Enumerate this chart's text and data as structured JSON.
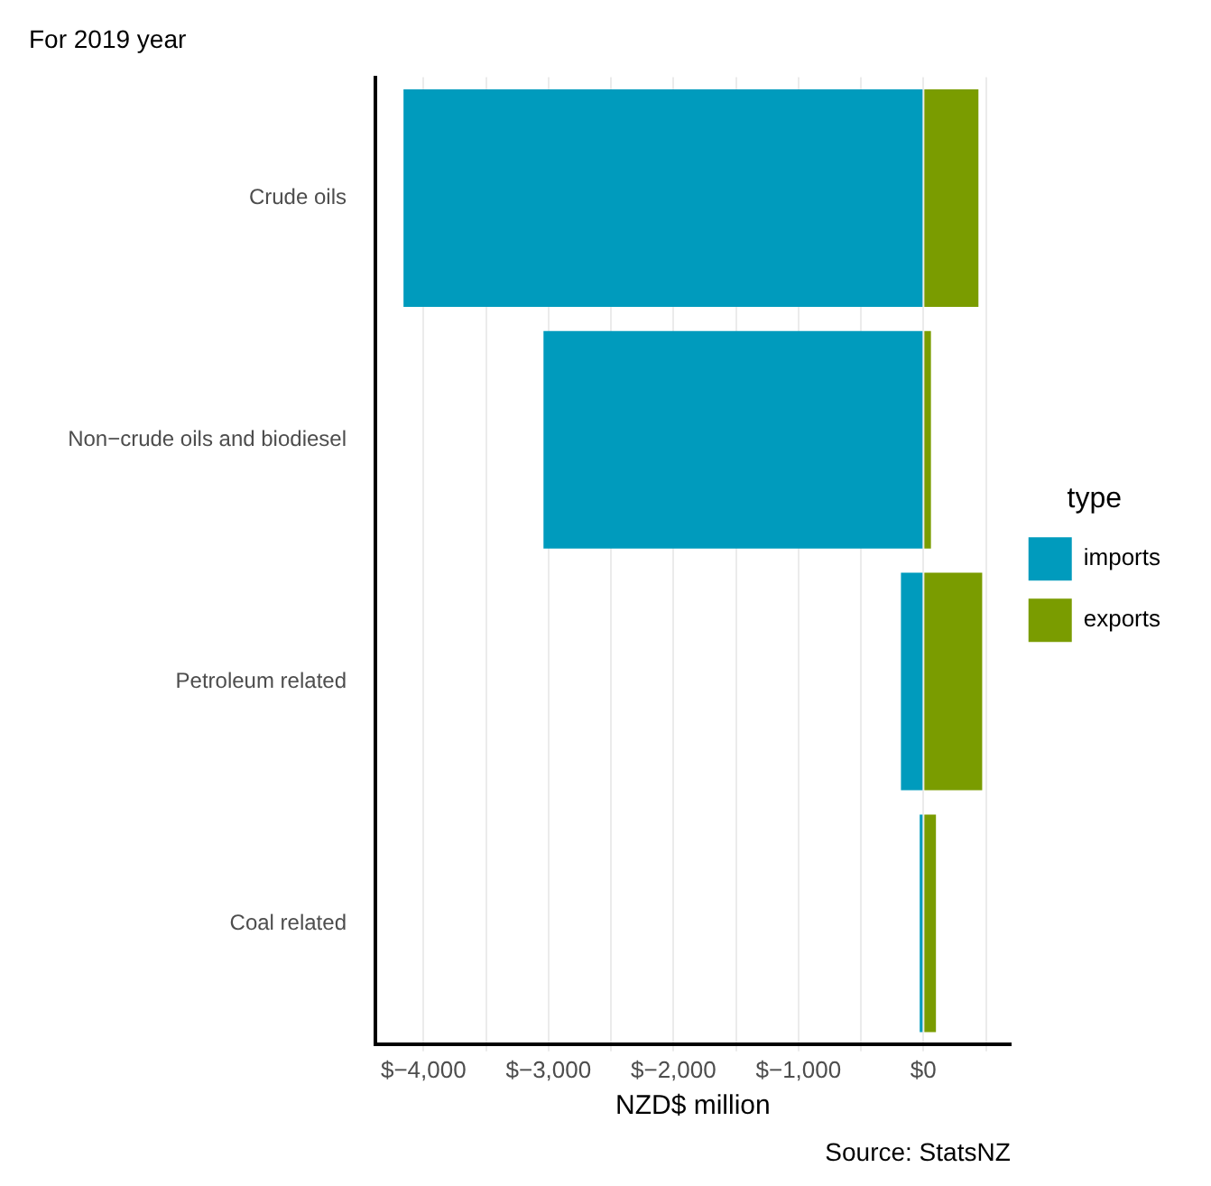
{
  "chart_data": {
    "type": "bar",
    "orientation": "horizontal",
    "stacked": true,
    "subtitle": "For 2019 year",
    "xlabel": "NZD$ million",
    "legend_title": "type",
    "legend": "right",
    "grid": "x",
    "categories": [
      "Crude oils",
      "Non−crude oils and biodiesel",
      "Petroleum related",
      "Coal related"
    ],
    "series": [
      {
        "name": "imports",
        "color": "#009bbd",
        "values": [
          -4160,
          -3040,
          -180,
          -30
        ]
      },
      {
        "name": "exports",
        "color": "#7a9c00",
        "values": [
          440,
          60,
          470,
          100
        ]
      }
    ],
    "xlim": [
      -4385,
      696
    ],
    "xticks": [
      {
        "value": -4000,
        "label": "$−4,000"
      },
      {
        "value": -3500,
        "label": null
      },
      {
        "value": -3000,
        "label": "$−3,000"
      },
      {
        "value": -2500,
        "label": null
      },
      {
        "value": -2000,
        "label": "$−2,000"
      },
      {
        "value": -1500,
        "label": null
      },
      {
        "value": -1000,
        "label": "$−1,000"
      },
      {
        "value": -500,
        "label": null
      },
      {
        "value": 0,
        "label": "$0"
      },
      {
        "value": 500,
        "label": null
      }
    ],
    "annotations": [
      "Source: StatsNZ"
    ]
  }
}
